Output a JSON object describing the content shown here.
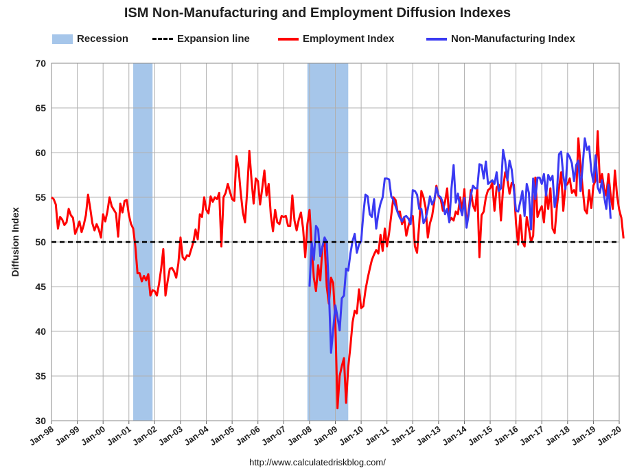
{
  "chart_data": {
    "type": "line",
    "title": "ISM Non-Manufacturing and Employment Diffusion Indexes",
    "ylabel": "Diffusion Index",
    "xlabel": "",
    "ylim": [
      30,
      70
    ],
    "yticks": [
      30,
      35,
      40,
      45,
      50,
      55,
      60,
      65,
      70
    ],
    "xticks": [
      "Jan-98",
      "Jan-99",
      "Jan-00",
      "Jan-01",
      "Jan-02",
      "Jan-03",
      "Jan-04",
      "Jan-05",
      "Jan-06",
      "Jan-07",
      "Jan-08",
      "Jan-09",
      "Jan-10",
      "Jan-11",
      "Jan-12",
      "Jan-13",
      "Jan-14",
      "Jan-15",
      "Jan-16",
      "Jan-17",
      "Jan-18",
      "Jan-19",
      "Jan-20"
    ],
    "x_start_year": 1998,
    "grid": true,
    "legend_position": "top",
    "legend": {
      "recession": "Recession",
      "expansion": "Expansion line",
      "employment": "Employment Index",
      "nonmfg": "Non-Manufacturing Index"
    },
    "colors": {
      "recession": "#a6c6ea",
      "employment": "#ff0000",
      "nonmfg": "#3a3af2",
      "expansion": "#000000",
      "grid": "#b0b0b0"
    },
    "recessions": [
      {
        "start": "2001-03",
        "end": "2001-11"
      },
      {
        "start": "2007-12",
        "end": "2009-06"
      }
    ],
    "expansion_value": 50,
    "series": [
      {
        "name": "Employment Index",
        "start": "1998-01",
        "values": [
          55.0,
          54.8,
          54.2,
          51.5,
          52.8,
          52.5,
          51.9,
          52.2,
          53.7,
          53.0,
          52.7,
          50.9,
          51.5,
          52.3,
          51.1,
          51.9,
          53.0,
          55.3,
          53.8,
          52.1,
          51.3,
          52.0,
          51.4,
          50.5,
          53.1,
          52.3,
          53.4,
          55.0,
          54.0,
          53.6,
          53.2,
          50.6,
          54.3,
          53.3,
          54.6,
          54.7,
          53.0,
          52.0,
          51.5,
          49.5,
          46.5,
          46.5,
          45.6,
          46.2,
          45.7,
          46.4,
          44.0,
          44.6,
          44.5,
          44.0,
          45.3,
          47.0,
          49.2,
          44.0,
          45.6,
          47.0,
          47.1,
          46.7,
          46.0,
          47.6,
          50.5,
          48.3,
          48.0,
          48.5,
          48.4,
          49.2,
          50.0,
          51.4,
          50.3,
          53.1,
          52.8,
          55.0,
          53.6,
          53.2,
          55.1,
          54.5,
          55.0,
          54.8,
          55.5,
          49.5,
          55.0,
          55.5,
          56.5,
          55.6,
          54.8,
          54.6,
          59.6,
          58.2,
          55.5,
          53.3,
          52.2,
          55.7,
          60.2,
          57.0,
          54.3,
          57.1,
          56.8,
          54.2,
          56.0,
          58.0,
          55.2,
          56.5,
          53.0,
          51.2,
          53.6,
          52.2,
          52.0,
          52.9,
          52.8,
          52.9,
          51.8,
          51.8,
          55.2,
          52.4,
          51.3,
          52.5,
          53.3,
          51.5,
          48.3,
          52.0,
          53.6,
          49.5,
          46.0,
          44.5,
          47.4,
          45.7,
          49.5,
          49.9,
          45.0,
          43.1,
          46.0,
          45.4,
          41.0,
          31.4,
          35.0,
          36.1,
          37.0,
          32.0,
          36.0,
          38.3,
          41.0,
          42.3,
          42.0,
          44.7,
          42.6,
          42.8,
          44.6,
          45.9,
          47.0,
          48.0,
          48.6,
          49.1,
          48.7,
          50.8,
          49.0,
          51.5,
          49.5,
          51.0,
          53.0,
          55.0,
          54.7,
          53.3,
          53.4,
          52.0,
          52.7,
          50.7,
          51.8,
          52.7,
          52.9,
          49.5,
          48.8,
          52.0,
          55.7,
          55.0,
          53.8,
          50.5,
          52.1,
          52.9,
          54.5,
          56.3,
          55.1,
          54.8,
          53.5,
          54.5,
          56.0,
          52.3,
          52.7,
          52.4,
          53.4,
          53.1,
          55.0,
          53.5,
          55.9,
          51.8,
          53.5,
          55.8,
          54.1,
          53.5,
          56.0,
          48.3,
          53.0,
          53.4,
          55.0,
          55.8,
          56.0,
          56.6,
          53.5,
          56.1,
          56.4,
          52.4,
          56.0,
          57.8,
          57.0,
          55.4,
          56.6,
          56.4,
          52.1,
          49.7,
          53.0,
          50.0,
          49.5,
          52.8,
          51.5,
          50.0,
          50.7,
          57.2,
          52.8,
          53.5,
          54.0,
          52.2,
          55.6,
          53.7,
          56.0,
          51.5,
          51.0,
          53.9,
          56.0,
          57.8,
          53.5,
          56.3,
          56.5,
          57.1,
          55.5,
          55.8,
          55.2,
          61.6,
          58.6,
          56.0,
          53.6,
          53.2,
          55.8,
          53.8,
          56.3,
          56.9,
          62.4,
          56.7,
          57.6,
          56.0,
          55.2,
          57.6,
          55.3,
          53.7,
          58.0,
          55.2,
          53.6,
          52.7,
          50.4
        ]
      },
      {
        "name": "Non-Manufacturing Index",
        "start": "2008-01",
        "values": [
          45.0,
          50.0,
          48.0,
          51.8,
          51.4,
          48.4,
          49.5,
          50.5,
          50.0,
          44.6,
          37.6,
          40.2,
          42.9,
          41.6,
          40.1,
          43.7,
          44.0,
          47.0,
          46.8,
          48.7,
          50.1,
          50.9,
          48.8,
          49.7,
          50.1,
          53.1,
          55.3,
          55.1,
          53.1,
          52.8,
          54.8,
          51.5,
          53.2,
          54.3,
          55.0,
          57.1,
          57.1,
          57.0,
          55.1,
          54.7,
          54.0,
          53.3,
          52.7,
          52.3,
          52.8,
          52.9,
          52.6,
          52.0,
          55.8,
          55.7,
          55.3,
          53.7,
          53.7,
          52.1,
          52.6,
          53.7,
          55.1,
          54.2,
          54.7,
          56.1,
          55.2,
          55.0,
          54.4,
          53.1,
          53.7,
          52.2,
          56.0,
          58.6,
          54.4,
          55.4,
          53.9,
          53.0,
          54.9,
          51.6,
          53.1,
          55.2,
          56.3,
          56.0,
          56.0,
          58.7,
          58.6,
          57.1,
          59.0,
          56.5,
          56.7,
          56.9,
          56.5,
          57.8,
          55.7,
          56.0,
          60.3,
          59.0,
          56.9,
          59.1,
          58.1,
          55.9,
          53.5,
          53.4,
          54.5,
          55.7,
          52.9,
          56.5,
          55.5,
          51.4,
          57.1,
          54.8,
          57.2,
          57.2,
          56.5,
          57.6,
          55.2,
          57.5,
          56.9,
          57.4,
          53.9,
          55.3,
          59.8,
          60.1,
          57.4,
          55.9,
          59.9,
          59.5,
          58.8,
          56.8,
          58.6,
          59.1,
          55.7,
          58.5,
          61.6,
          60.3,
          60.7,
          58.0,
          56.7,
          59.7,
          56.1,
          55.5,
          56.9,
          55.1,
          53.7,
          56.4,
          52.6
        ]
      }
    ]
  },
  "source": "http://www.calculatedriskblog.com/"
}
